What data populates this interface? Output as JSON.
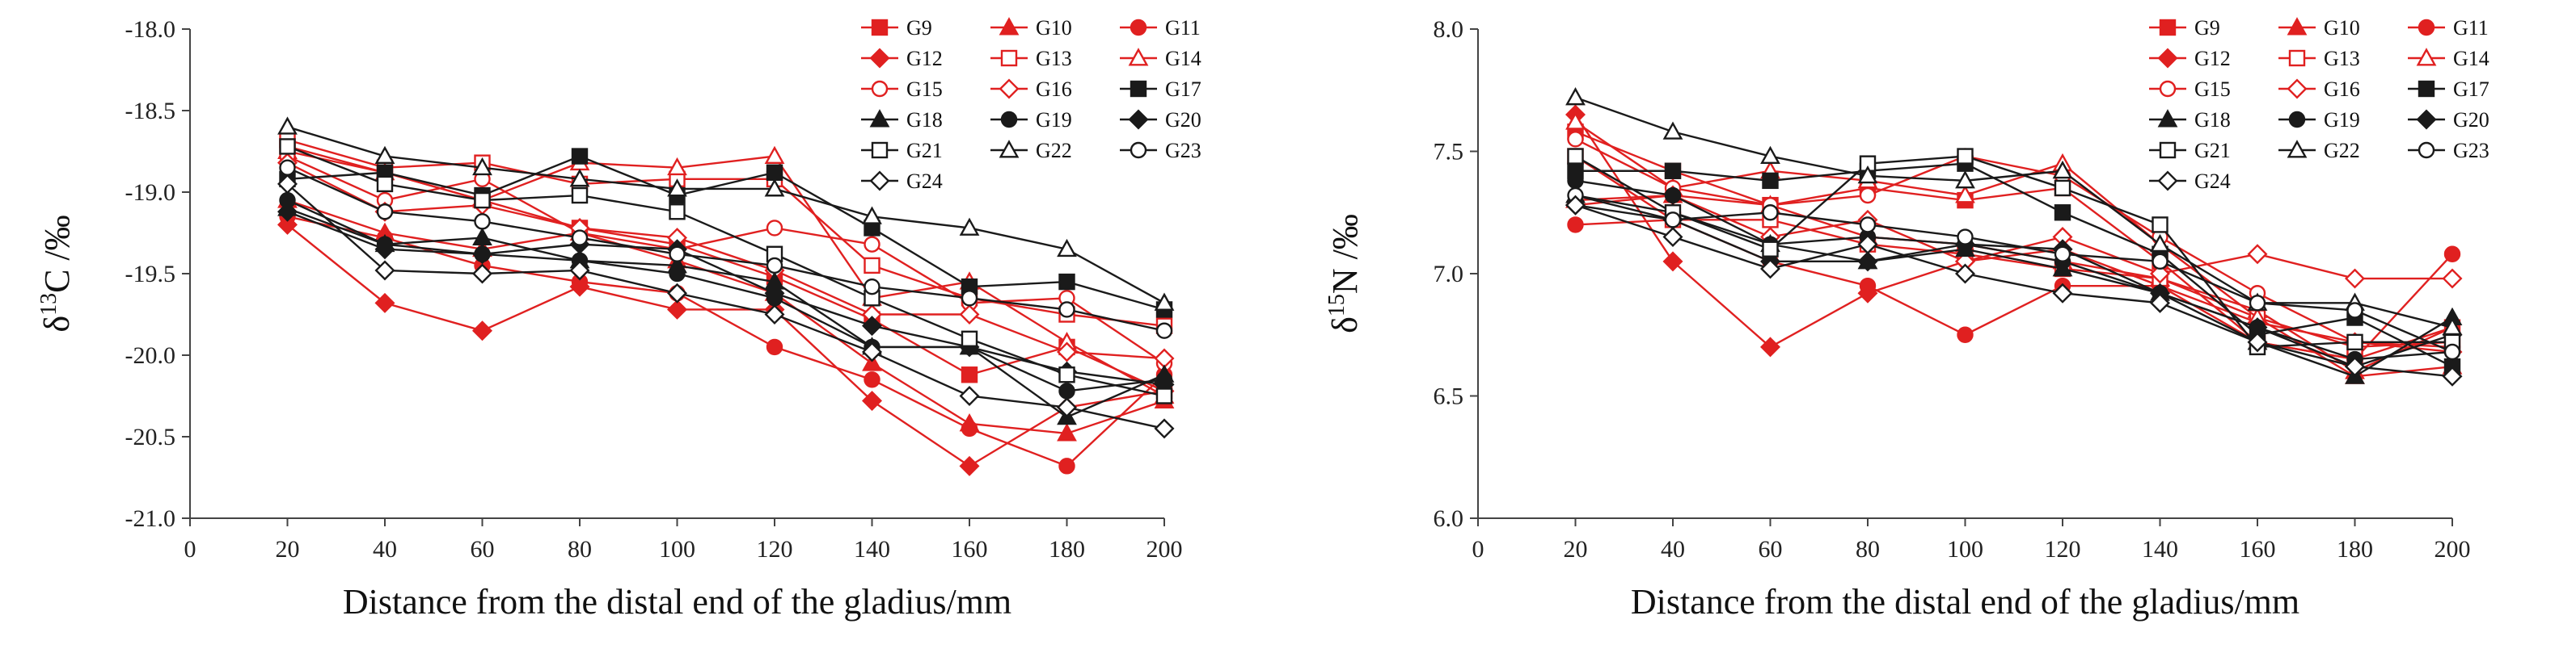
{
  "chart_data": [
    {
      "type": "line",
      "title": "",
      "xlabel": "Distance from the distal end of the gladius/mm",
      "ylabel_parts": {
        "symbol": "δ",
        "sup": "13",
        "element": "C /‰"
      },
      "xlim": [
        0,
        200
      ],
      "ylim": [
        -21.0,
        -18.0
      ],
      "xticks": [
        0,
        20,
        40,
        60,
        80,
        100,
        120,
        140,
        160,
        180,
        200
      ],
      "yticks": [
        -18.0,
        -18.5,
        -19.0,
        -19.5,
        -20.0,
        -20.5,
        -21.0
      ],
      "ytick_labels": [
        "-18.0",
        "-18.5",
        "-19.0",
        "-19.5",
        "-20.0",
        "-20.5",
        "-21.0"
      ],
      "x": [
        20,
        40,
        60,
        80,
        100,
        120,
        140,
        160,
        180,
        200
      ],
      "legend_position": "top-right",
      "series": [
        {
          "name": "G9",
          "color": "#e02020",
          "marker": "square-filled",
          "values": [
            -18.72,
            -18.88,
            -19.05,
            -19.22,
            -19.32,
            -19.52,
            -19.78,
            -20.12,
            -19.95,
            -20.22
          ]
        },
        {
          "name": "G10",
          "color": "#e02020",
          "marker": "triangle-filled",
          "values": [
            -19.05,
            -19.25,
            -19.35,
            -19.25,
            -19.42,
            -19.62,
            -20.05,
            -20.42,
            -20.48,
            -20.28
          ]
        },
        {
          "name": "G11",
          "color": "#e02020",
          "marker": "circle-filled",
          "values": [
            -19.15,
            -19.28,
            -19.45,
            -19.55,
            -19.62,
            -19.95,
            -20.15,
            -20.45,
            -20.68,
            -20.12
          ]
        },
        {
          "name": "G12",
          "color": "#e02020",
          "marker": "diamond-filled",
          "values": [
            -19.2,
            -19.68,
            -19.85,
            -19.58,
            -19.72,
            -19.72,
            -20.28,
            -20.68,
            -20.32,
            -20.22
          ]
        },
        {
          "name": "G13",
          "color": "#e02020",
          "marker": "square-open",
          "values": [
            -18.68,
            -18.85,
            -18.82,
            -18.95,
            -18.92,
            -18.92,
            -19.45,
            -19.65,
            -19.75,
            -19.82
          ]
        },
        {
          "name": "G14",
          "color": "#e02020",
          "marker": "triangle-open",
          "values": [
            -18.75,
            -18.88,
            -19.05,
            -18.82,
            -18.85,
            -18.78,
            -19.65,
            -19.55,
            -19.92,
            -20.25
          ]
        },
        {
          "name": "G15",
          "color": "#e02020",
          "marker": "circle-open",
          "values": [
            -18.78,
            -19.05,
            -18.92,
            -19.25,
            -19.35,
            -19.22,
            -19.32,
            -19.68,
            -19.65,
            -20.05
          ]
        },
        {
          "name": "G16",
          "color": "#e02020",
          "marker": "diamond-open",
          "values": [
            -18.82,
            -19.12,
            -19.08,
            -19.22,
            -19.28,
            -19.48,
            -19.75,
            -19.75,
            -19.98,
            -20.02
          ]
        },
        {
          "name": "G17",
          "color": "#1a1a1a",
          "marker": "square-filled",
          "values": [
            -18.92,
            -18.88,
            -19.02,
            -18.78,
            -19.02,
            -18.88,
            -19.22,
            -19.58,
            -19.55,
            -19.72
          ]
        },
        {
          "name": "G18",
          "color": "#1a1a1a",
          "marker": "triangle-filled",
          "values": [
            -19.1,
            -19.32,
            -19.28,
            -19.42,
            -19.45,
            -19.55,
            -19.95,
            -19.95,
            -20.38,
            -20.12
          ]
        },
        {
          "name": "G19",
          "color": "#1a1a1a",
          "marker": "circle-filled",
          "values": [
            -19.05,
            -19.32,
            -19.38,
            -19.42,
            -19.5,
            -19.65,
            -19.95,
            -19.95,
            -20.22,
            -20.15
          ]
        },
        {
          "name": "G20",
          "color": "#1a1a1a",
          "marker": "diamond-filled",
          "values": [
            -19.12,
            -19.35,
            -19.38,
            -19.32,
            -19.35,
            -19.62,
            -19.82,
            -19.95,
            -20.1,
            -20.18
          ]
        },
        {
          "name": "G21",
          "color": "#1a1a1a",
          "marker": "square-open",
          "values": [
            -18.72,
            -18.95,
            -19.05,
            -19.02,
            -19.12,
            -19.38,
            -19.65,
            -19.9,
            -20.12,
            -20.25
          ]
        },
        {
          "name": "G22",
          "color": "#1a1a1a",
          "marker": "triangle-open",
          "values": [
            -18.6,
            -18.78,
            -18.85,
            -18.92,
            -18.98,
            -18.98,
            -19.15,
            -19.22,
            -19.35,
            -19.68
          ]
        },
        {
          "name": "G23",
          "color": "#1a1a1a",
          "marker": "circle-open",
          "values": [
            -18.85,
            -19.12,
            -19.18,
            -19.28,
            -19.38,
            -19.45,
            -19.58,
            -19.65,
            -19.72,
            -19.85
          ]
        },
        {
          "name": "G24",
          "color": "#1a1a1a",
          "marker": "diamond-open",
          "values": [
            -18.95,
            -19.48,
            -19.5,
            -19.48,
            -19.62,
            -19.75,
            -19.98,
            -20.25,
            -20.32,
            -20.45
          ]
        }
      ]
    },
    {
      "type": "line",
      "title": "",
      "xlabel": "Distance from the distal end of the gladius/mm",
      "ylabel_parts": {
        "symbol": "δ",
        "sup": "15",
        "element": "N /‰"
      },
      "xlim": [
        0,
        200
      ],
      "ylim": [
        6.0,
        8.0
      ],
      "xticks": [
        0,
        20,
        40,
        60,
        80,
        100,
        120,
        140,
        160,
        180,
        200
      ],
      "yticks": [
        6.0,
        6.5,
        7.0,
        7.5,
        8.0
      ],
      "ytick_labels": [
        "6.0",
        "6.5",
        "7.0",
        "7.5",
        "8.0"
      ],
      "x": [
        20,
        40,
        60,
        80,
        100,
        120,
        140,
        160,
        180,
        200
      ],
      "legend_position": "top-right",
      "series": [
        {
          "name": "G9",
          "color": "#e02020",
          "marker": "square-filled",
          "values": [
            7.58,
            7.42,
            7.28,
            7.35,
            7.3,
            7.35,
            7.05,
            6.72,
            6.65,
            6.78
          ]
        },
        {
          "name": "G10",
          "color": "#e02020",
          "marker": "triangle-filled",
          "values": [
            7.3,
            7.32,
            7.28,
            7.15,
            7.12,
            7.05,
            6.98,
            6.85,
            6.6,
            6.78
          ]
        },
        {
          "name": "G11",
          "color": "#e02020",
          "marker": "circle-filled",
          "values": [
            7.2,
            7.22,
            7.05,
            6.95,
            6.75,
            6.95,
            6.95,
            6.72,
            6.65,
            7.08
          ]
        },
        {
          "name": "G12",
          "color": "#e02020",
          "marker": "diamond-filled",
          "values": [
            7.65,
            7.05,
            6.7,
            6.92,
            7.05,
            7.1,
            6.95,
            6.8,
            6.72,
            6.68
          ]
        },
        {
          "name": "G13",
          "color": "#e02020",
          "marker": "square-open",
          "values": [
            7.48,
            7.22,
            7.22,
            7.12,
            7.08,
            7.02,
            6.98,
            6.82,
            6.7,
            6.72
          ]
        },
        {
          "name": "G14",
          "color": "#e02020",
          "marker": "triangle-open",
          "values": [
            7.62,
            7.35,
            7.42,
            7.38,
            7.32,
            7.45,
            7.12,
            6.82,
            6.58,
            6.62
          ]
        },
        {
          "name": "G15",
          "color": "#e02020",
          "marker": "circle-open",
          "values": [
            7.55,
            7.35,
            7.28,
            7.32,
            7.48,
            7.4,
            7.15,
            6.92,
            6.72,
            6.7
          ]
        },
        {
          "name": "G16",
          "color": "#e02020",
          "marker": "diamond-open",
          "values": [
            7.28,
            7.32,
            7.15,
            7.22,
            7.05,
            7.15,
            7.0,
            7.08,
            6.98,
            6.98
          ]
        },
        {
          "name": "G17",
          "color": "#1a1a1a",
          "marker": "square-filled",
          "values": [
            7.42,
            7.42,
            7.38,
            7.42,
            7.45,
            7.25,
            7.08,
            6.75,
            6.82,
            6.62
          ]
        },
        {
          "name": "G18",
          "color": "#1a1a1a",
          "marker": "triangle-filled",
          "values": [
            7.32,
            7.25,
            7.12,
            7.05,
            7.1,
            7.02,
            6.92,
            6.72,
            6.58,
            6.82
          ]
        },
        {
          "name": "G19",
          "color": "#1a1a1a",
          "marker": "circle-filled",
          "values": [
            7.38,
            7.32,
            7.12,
            7.15,
            7.12,
            7.05,
            6.92,
            6.78,
            6.65,
            6.68
          ]
        },
        {
          "name": "G20",
          "color": "#1a1a1a",
          "marker": "diamond-filled",
          "values": [
            7.28,
            7.22,
            7.05,
            7.05,
            7.12,
            7.1,
            6.92,
            6.78,
            6.62,
            6.75
          ]
        },
        {
          "name": "G21",
          "color": "#1a1a1a",
          "marker": "square-open",
          "values": [
            7.48,
            7.25,
            7.1,
            7.45,
            7.48,
            7.35,
            7.2,
            6.7,
            6.72,
            6.72
          ]
        },
        {
          "name": "G22",
          "color": "#1a1a1a",
          "marker": "triangle-open",
          "values": [
            7.72,
            7.58,
            7.48,
            7.4,
            7.38,
            7.42,
            7.12,
            6.88,
            6.88,
            6.78
          ]
        },
        {
          "name": "G23",
          "color": "#1a1a1a",
          "marker": "circle-open",
          "values": [
            7.32,
            7.22,
            7.25,
            7.2,
            7.15,
            7.08,
            7.05,
            6.88,
            6.85,
            6.68
          ]
        },
        {
          "name": "G24",
          "color": "#1a1a1a",
          "marker": "diamond-open",
          "values": [
            7.28,
            7.15,
            7.02,
            7.12,
            7.0,
            6.92,
            6.88,
            6.72,
            6.62,
            6.58
          ]
        }
      ]
    }
  ]
}
